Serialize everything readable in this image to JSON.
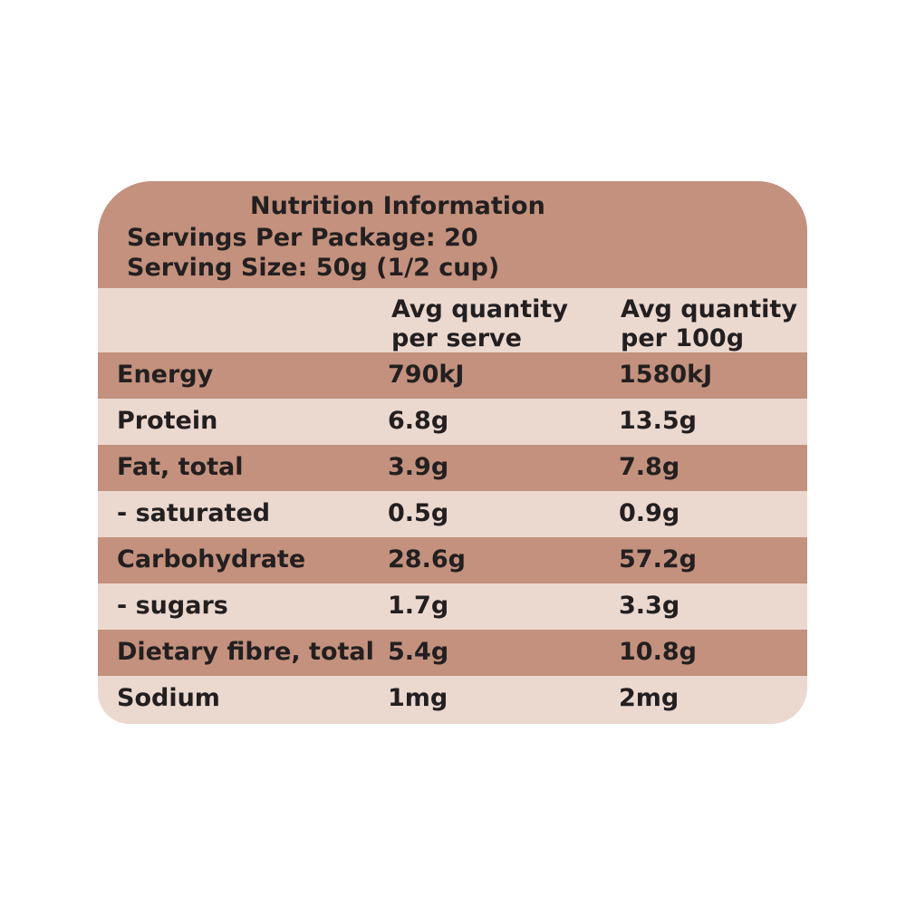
{
  "header": {
    "title": "Nutrition Information",
    "servings": "Servings Per Package: 20",
    "serving_size": "Serving Size: 50g (1/2 cup)"
  },
  "table": {
    "columns": [
      "Avg quantity per serve",
      "Avg quantity per 100g"
    ],
    "rows": [
      [
        "Energy",
        "790kJ",
        "1580kJ"
      ],
      [
        "Protein",
        "6.8g",
        "13.5g"
      ],
      [
        "Fat, total",
        "3.9g",
        "7.8g"
      ],
      [
        "- saturated",
        "0.5g",
        "0.9g"
      ],
      [
        "Carbohydrate",
        "28.6g",
        "57.2g"
      ],
      [
        "- sugars",
        "1.7g",
        "3.3g"
      ],
      [
        "Dietary fibre, total",
        "5.4g",
        "10.8g"
      ],
      [
        "Sodium",
        "1mg",
        "2mg"
      ]
    ]
  }
}
